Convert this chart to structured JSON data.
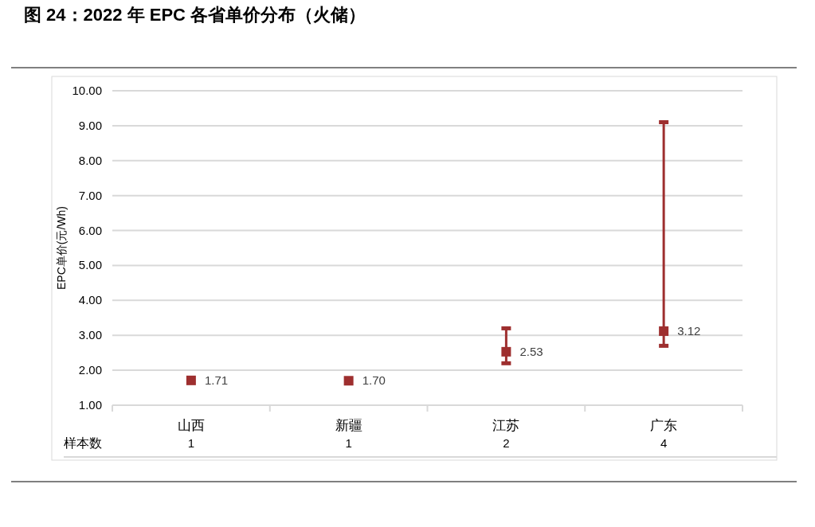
{
  "chart_data": {
    "type": "scatter",
    "title": "图 24：2022 年 EPC 各省单价分布（火储）",
    "ylabel": "EPC单价(元/Wh)",
    "categories": [
      "山西",
      "新疆",
      "江苏",
      "广东"
    ],
    "values": [
      1.71,
      1.7,
      2.53,
      3.12
    ],
    "value_labels": [
      "1.71",
      "1.70",
      "2.53",
      "3.12"
    ],
    "errors": [
      null,
      null,
      [
        2.2,
        3.2
      ],
      [
        2.7,
        9.1
      ]
    ],
    "color": "#9e2f2f",
    "marker": "square",
    "grid": "y",
    "ylim": [
      1,
      10
    ],
    "yticks": [
      {
        "value": 1,
        "label": "1.00"
      },
      {
        "value": 2,
        "label": "2.00"
      },
      {
        "value": 3,
        "label": "3.00"
      },
      {
        "value": 4,
        "label": "4.00"
      },
      {
        "value": 5,
        "label": "5.00"
      },
      {
        "value": 6,
        "label": "6.00"
      },
      {
        "value": 7,
        "label": "7.00"
      },
      {
        "value": 8,
        "label": "8.00"
      },
      {
        "value": 9,
        "label": "9.00"
      },
      {
        "value": 10,
        "label": "10.00"
      }
    ],
    "annotations": [
      "样本数",
      "1",
      "1",
      "2",
      "4"
    ]
  }
}
